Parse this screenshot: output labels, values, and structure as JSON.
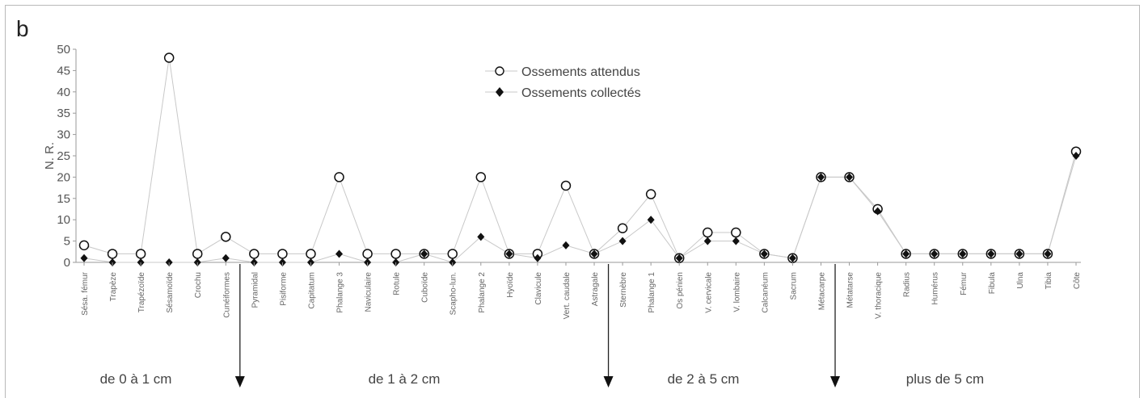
{
  "chart_data": {
    "type": "line",
    "panel_label": "b",
    "title": "",
    "xlabel": "",
    "ylabel": "N. R.",
    "ylim": [
      0,
      50
    ],
    "yticks": [
      0,
      5,
      10,
      15,
      20,
      25,
      30,
      35,
      40,
      45,
      50
    ],
    "grid": false,
    "legend_position": "top-center",
    "categories": [
      "Sésa. fémur",
      "Trapèze",
      "Trapézoïde",
      "Sésamoïde",
      "Crochu",
      "Cunéiformes",
      "Pyramidal",
      "Pisiforme",
      "Capitatum",
      "Phalange 3",
      "Naviculaire",
      "Rotule",
      "Cuboïde",
      "Scapho-lun.",
      "Phalange 2",
      "Hyoïde",
      "Clavicule",
      "Vert. caudale",
      "Astragale",
      "Sternèbre",
      "Phalange 1",
      "Os pénien",
      "V. cervicale",
      "V. lombaire",
      "Calcanéum",
      "Sacrum",
      "Métacarpe",
      "Métatarse",
      "V. thoracique",
      "Radius",
      "Humérus",
      "Fémur",
      "Fibula",
      "Ulna",
      "Tibia",
      "Côte"
    ],
    "series": [
      {
        "name": "Ossements attendus",
        "marker": "open-circle",
        "values": [
          4,
          2,
          2,
          48,
          2,
          6,
          2,
          2,
          2,
          20,
          2,
          2,
          2,
          2,
          20,
          2,
          2,
          18,
          2,
          8,
          16,
          1,
          7,
          7,
          2,
          1,
          20,
          20,
          12.5,
          2,
          2,
          2,
          2,
          2,
          2,
          26
        ]
      },
      {
        "name": "Ossements collectés",
        "marker": "filled-diamond",
        "values": [
          1,
          0,
          0,
          0,
          0,
          1,
          0,
          0,
          0,
          2,
          0,
          0,
          2,
          0,
          6,
          2,
          1,
          4,
          2,
          5,
          10,
          1,
          5,
          5,
          2,
          1,
          20,
          20,
          12,
          2,
          2,
          2,
          2,
          2,
          2,
          25
        ]
      }
    ],
    "size_classes": [
      {
        "label": "de 0 à 1 cm"
      },
      {
        "label": "de 1 à 2 cm"
      },
      {
        "label": "de 2 à 5 cm"
      },
      {
        "label": "plus de 5 cm"
      }
    ],
    "colors": {
      "line": "#c8c8c8",
      "marker": "#111111",
      "axis": "#9a9a9a",
      "text": "#555555"
    }
  }
}
